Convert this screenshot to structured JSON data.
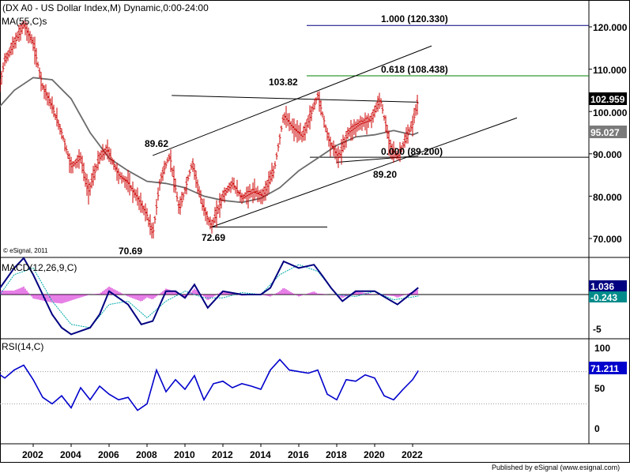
{
  "header": {
    "title": "(DX A0 - US Dollar Index,M) Dynamic,0:00-24:00",
    "ma_label": "MA(55,C)s",
    "copyright": "© eSignal, 2011"
  },
  "footer": {
    "published": "Published by eSignal (www.esignal.com)"
  },
  "price_panel": {
    "y_ticks": [
      "120.000",
      "110.000",
      "100.000",
      "90.000",
      "80.000",
      "70.000"
    ],
    "current_price": "102.959",
    "ma_value": "95.027",
    "fib": [
      {
        "label": "1.000 (120.330)",
        "value": 120.33,
        "color": "#000080"
      },
      {
        "label": "0.618 (108.438)",
        "value": 108.438,
        "color": "#008000"
      },
      {
        "label": "0.000 (89.200)",
        "value": 89.2,
        "color": "#000000"
      }
    ],
    "annotations": [
      "103.82",
      "89.62",
      "72.69",
      "70.69",
      "89.20"
    ]
  },
  "macd_panel": {
    "label": "MACD(12,26,9,C)",
    "tick": "-5",
    "values": [
      "1.036",
      "-0.243"
    ],
    "colors": {
      "macd": "#000080",
      "signal": "#00aaaa",
      "histogram": "#cc00cc"
    }
  },
  "rsi_panel": {
    "label": "RSI(14,C)",
    "y_ticks": [
      "100",
      "50",
      "0"
    ],
    "value": "71.211",
    "color": "#0000cc"
  },
  "x_axis": {
    "labels": [
      "2002",
      "2004",
      "2006",
      "2008",
      "2010",
      "2012",
      "2014",
      "2016",
      "2018",
      "2020",
      "2022"
    ]
  },
  "chart_data": {
    "type": "line",
    "title": "(DX A0 - US Dollar Index,M) Dynamic,0:00-24:00",
    "x_start": 2000.0,
    "x_end": 2022.0,
    "price_series": [
      {
        "x": 2000.0,
        "y": 101
      },
      {
        "x": 2000.5,
        "y": 112
      },
      {
        "x": 2001.0,
        "y": 116
      },
      {
        "x": 2001.5,
        "y": 120.5
      },
      {
        "x": 2002.0,
        "y": 116
      },
      {
        "x": 2002.5,
        "y": 106
      },
      {
        "x": 2003.0,
        "y": 101
      },
      {
        "x": 2003.5,
        "y": 95
      },
      {
        "x": 2004.0,
        "y": 87
      },
      {
        "x": 2004.5,
        "y": 89
      },
      {
        "x": 2004.9,
        "y": 81
      },
      {
        "x": 2005.5,
        "y": 89
      },
      {
        "x": 2005.9,
        "y": 91
      },
      {
        "x": 2006.5,
        "y": 85
      },
      {
        "x": 2007.0,
        "y": 83
      },
      {
        "x": 2007.5,
        "y": 79.5
      },
      {
        "x": 2008.0,
        "y": 75.5
      },
      {
        "x": 2008.3,
        "y": 70.7
      },
      {
        "x": 2008.7,
        "y": 84
      },
      {
        "x": 2009.2,
        "y": 89.6
      },
      {
        "x": 2009.7,
        "y": 76.5
      },
      {
        "x": 2010.4,
        "y": 88
      },
      {
        "x": 2010.9,
        "y": 78
      },
      {
        "x": 2011.4,
        "y": 72.7
      },
      {
        "x": 2012.0,
        "y": 80
      },
      {
        "x": 2012.5,
        "y": 83
      },
      {
        "x": 2013.0,
        "y": 79.5
      },
      {
        "x": 2013.6,
        "y": 81
      },
      {
        "x": 2014.1,
        "y": 80
      },
      {
        "x": 2014.7,
        "y": 86
      },
      {
        "x": 2015.2,
        "y": 99
      },
      {
        "x": 2015.7,
        "y": 96
      },
      {
        "x": 2016.2,
        "y": 94
      },
      {
        "x": 2016.7,
        "y": 100
      },
      {
        "x": 2017.0,
        "y": 103.8
      },
      {
        "x": 2017.6,
        "y": 93
      },
      {
        "x": 2018.1,
        "y": 89
      },
      {
        "x": 2018.6,
        "y": 95
      },
      {
        "x": 2019.2,
        "y": 97
      },
      {
        "x": 2019.8,
        "y": 98
      },
      {
        "x": 2020.3,
        "y": 102.9
      },
      {
        "x": 2020.8,
        "y": 92
      },
      {
        "x": 2021.2,
        "y": 89.2
      },
      {
        "x": 2021.6,
        "y": 93
      },
      {
        "x": 2022.0,
        "y": 97
      },
      {
        "x": 2022.3,
        "y": 102.96
      }
    ],
    "ma_series": [
      {
        "x": 2000.0,
        "y": 100
      },
      {
        "x": 2001.0,
        "y": 105
      },
      {
        "x": 2002.0,
        "y": 108
      },
      {
        "x": 2003.0,
        "y": 107.5
      },
      {
        "x": 2004.0,
        "y": 103
      },
      {
        "x": 2005.0,
        "y": 95
      },
      {
        "x": 2006.0,
        "y": 89
      },
      {
        "x": 2007.0,
        "y": 86
      },
      {
        "x": 2008.0,
        "y": 83.5
      },
      {
        "x": 2009.0,
        "y": 83
      },
      {
        "x": 2010.0,
        "y": 82
      },
      {
        "x": 2011.0,
        "y": 80
      },
      {
        "x": 2012.0,
        "y": 79
      },
      {
        "x": 2013.0,
        "y": 78.5
      },
      {
        "x": 2014.0,
        "y": 79.5
      },
      {
        "x": 2015.0,
        "y": 82
      },
      {
        "x": 2016.0,
        "y": 86
      },
      {
        "x": 2017.0,
        "y": 89
      },
      {
        "x": 2018.0,
        "y": 92
      },
      {
        "x": 2019.0,
        "y": 94
      },
      {
        "x": 2020.0,
        "y": 94.5
      },
      {
        "x": 2021.0,
        "y": 95.5
      },
      {
        "x": 2022.0,
        "y": 94.5
      },
      {
        "x": 2022.3,
        "y": 95.03
      }
    ],
    "channel_lines": [
      {
        "points": [
          {
            "x": 2008.3,
            "y": 89.6
          },
          {
            "x": 2023.0,
            "y": 115.5
          }
        ]
      },
      {
        "points": [
          {
            "x": 2011.4,
            "y": 72.7
          },
          {
            "x": 2027.5,
            "y": 98.5
          }
        ]
      },
      {
        "points": [
          {
            "x": 2009.3,
            "y": 103.8
          },
          {
            "x": 2022.3,
            "y": 102.2
          }
        ]
      },
      {
        "points": [
          {
            "x": 2018.0,
            "y": 88.0
          },
          {
            "x": 2022.3,
            "y": 89.5
          }
        ]
      },
      {
        "points": [
          {
            "x": 2011.3,
            "y": 72.7
          },
          {
            "x": 2017.5,
            "y": 72.7
          }
        ]
      }
    ],
    "macd": [
      {
        "x": 2000.0,
        "y": 0.0
      },
      {
        "x": 2001.0,
        "y": 4
      },
      {
        "x": 2001.5,
        "y": 5.5
      },
      {
        "x": 2002.0,
        "y": 3
      },
      {
        "x": 2003.0,
        "y": -3
      },
      {
        "x": 2003.5,
        "y": -5
      },
      {
        "x": 2004.0,
        "y": -6
      },
      {
        "x": 2004.5,
        "y": -5.5
      },
      {
        "x": 2005.0,
        "y": -5
      },
      {
        "x": 2005.5,
        "y": -3
      },
      {
        "x": 2006.0,
        "y": 0.5
      },
      {
        "x": 2007.0,
        "y": -1.5
      },
      {
        "x": 2007.7,
        "y": -4.5
      },
      {
        "x": 2008.3,
        "y": -4
      },
      {
        "x": 2009.0,
        "y": 0.5
      },
      {
        "x": 2009.5,
        "y": 0.5
      },
      {
        "x": 2010.0,
        "y": -0.5
      },
      {
        "x": 2010.5,
        "y": 1.5
      },
      {
        "x": 2011.2,
        "y": -2
      },
      {
        "x": 2012.0,
        "y": 0.5
      },
      {
        "x": 2013.0,
        "y": 0.0
      },
      {
        "x": 2014.0,
        "y": 0.0
      },
      {
        "x": 2014.5,
        "y": 1
      },
      {
        "x": 2015.2,
        "y": 5
      },
      {
        "x": 2016.0,
        "y": 4
      },
      {
        "x": 2016.8,
        "y": 4.5
      },
      {
        "x": 2017.2,
        "y": 3
      },
      {
        "x": 2017.7,
        "y": 1
      },
      {
        "x": 2018.3,
        "y": -1
      },
      {
        "x": 2019.0,
        "y": 0.5
      },
      {
        "x": 2020.0,
        "y": 0.5
      },
      {
        "x": 2021.2,
        "y": -1.5
      },
      {
        "x": 2022.3,
        "y": 1.04
      }
    ],
    "macd_signal": [
      {
        "x": 2000.0,
        "y": -1
      },
      {
        "x": 2001.0,
        "y": 3
      },
      {
        "x": 2002.0,
        "y": 4
      },
      {
        "x": 2003.0,
        "y": -1
      },
      {
        "x": 2004.0,
        "y": -4.5
      },
      {
        "x": 2005.0,
        "y": -5
      },
      {
        "x": 2006.0,
        "y": -1.5
      },
      {
        "x": 2007.0,
        "y": -1
      },
      {
        "x": 2008.0,
        "y": -3.5
      },
      {
        "x": 2009.0,
        "y": -1
      },
      {
        "x": 2010.0,
        "y": 0.5
      },
      {
        "x": 2011.0,
        "y": -0.5
      },
      {
        "x": 2012.0,
        "y": -0.5
      },
      {
        "x": 2013.0,
        "y": 0.3
      },
      {
        "x": 2014.0,
        "y": 0.0
      },
      {
        "x": 2015.0,
        "y": 3
      },
      {
        "x": 2016.0,
        "y": 4.5
      },
      {
        "x": 2017.0,
        "y": 3.5
      },
      {
        "x": 2018.0,
        "y": 0.0
      },
      {
        "x": 2019.0,
        "y": -0.3
      },
      {
        "x": 2020.0,
        "y": 0.5
      },
      {
        "x": 2021.0,
        "y": -0.8
      },
      {
        "x": 2022.3,
        "y": -0.24
      }
    ],
    "rsi": [
      {
        "x": 2000.0,
        "y": 70
      },
      {
        "x": 2000.5,
        "y": 62
      },
      {
        "x": 2001.0,
        "y": 72
      },
      {
        "x": 2001.5,
        "y": 78
      },
      {
        "x": 2002.0,
        "y": 60
      },
      {
        "x": 2002.5,
        "y": 38
      },
      {
        "x": 2003.0,
        "y": 30
      },
      {
        "x": 2003.5,
        "y": 40
      },
      {
        "x": 2004.0,
        "y": 25
      },
      {
        "x": 2004.5,
        "y": 50
      },
      {
        "x": 2005.0,
        "y": 35
      },
      {
        "x": 2005.5,
        "y": 52
      },
      {
        "x": 2006.0,
        "y": 42
      },
      {
        "x": 2006.5,
        "y": 35
      },
      {
        "x": 2007.0,
        "y": 38
      },
      {
        "x": 2007.5,
        "y": 22
      },
      {
        "x": 2008.0,
        "y": 30
      },
      {
        "x": 2008.5,
        "y": 72
      },
      {
        "x": 2009.0,
        "y": 45
      },
      {
        "x": 2009.5,
        "y": 60
      },
      {
        "x": 2010.0,
        "y": 48
      },
      {
        "x": 2010.5,
        "y": 65
      },
      {
        "x": 2011.0,
        "y": 35
      },
      {
        "x": 2011.5,
        "y": 55
      },
      {
        "x": 2012.0,
        "y": 58
      },
      {
        "x": 2012.5,
        "y": 50
      },
      {
        "x": 2013.0,
        "y": 55
      },
      {
        "x": 2013.5,
        "y": 52
      },
      {
        "x": 2014.0,
        "y": 48
      },
      {
        "x": 2014.5,
        "y": 72
      },
      {
        "x": 2015.0,
        "y": 85
      },
      {
        "x": 2015.5,
        "y": 72
      },
      {
        "x": 2016.0,
        "y": 70
      },
      {
        "x": 2016.5,
        "y": 68
      },
      {
        "x": 2017.0,
        "y": 72
      },
      {
        "x": 2017.5,
        "y": 42
      },
      {
        "x": 2018.0,
        "y": 35
      },
      {
        "x": 2018.5,
        "y": 60
      },
      {
        "x": 2019.0,
        "y": 58
      },
      {
        "x": 2019.5,
        "y": 66
      },
      {
        "x": 2020.0,
        "y": 62
      },
      {
        "x": 2020.5,
        "y": 40
      },
      {
        "x": 2021.0,
        "y": 35
      },
      {
        "x": 2021.5,
        "y": 48
      },
      {
        "x": 2022.0,
        "y": 60
      },
      {
        "x": 2022.3,
        "y": 71.2
      }
    ]
  }
}
